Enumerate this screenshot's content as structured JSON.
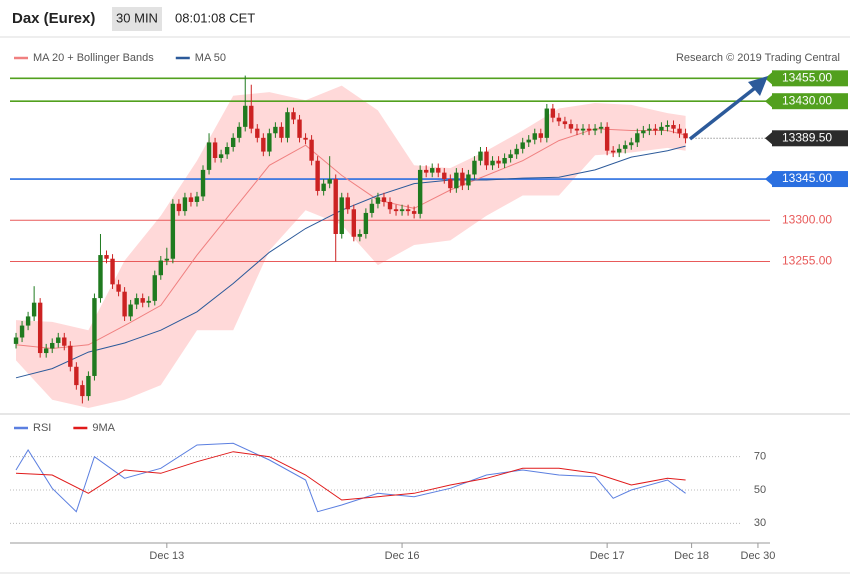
{
  "header": {
    "instrument": "Dax (Eurex)",
    "timeframe": "30 MIN",
    "time": "08:01:08 CET"
  },
  "chart_data": [
    {
      "type": "candlestick",
      "credit": "Research © 2019 Trading Central",
      "up_color": "#1f7a1f",
      "down_color": "#cc2222",
      "xlim": [
        -1,
        125
      ],
      "ylim": [
        13095,
        13475
      ],
      "open": [
        13165,
        13172,
        13185,
        13195,
        13210,
        13155,
        13160,
        13166,
        13172,
        13163,
        13140,
        13120,
        13108,
        13130,
        13215,
        13262,
        13258,
        13230,
        13222,
        13195,
        13208,
        13215,
        13210,
        13212,
        13240,
        13256,
        13258,
        13318,
        13310,
        13325,
        13320,
        13326,
        13355,
        13385,
        13368,
        13372,
        13380,
        13390,
        13402,
        13425,
        13400,
        13390,
        13375,
        13395,
        13402,
        13390,
        13418,
        13410,
        13390,
        13388,
        13365,
        13332,
        13340,
        13345,
        13285,
        13325,
        13312,
        13282,
        13285,
        13308,
        13318,
        13325,
        13320,
        13312,
        13310,
        13312,
        13310,
        13307,
        13355,
        13352,
        13357,
        13352,
        13345,
        13335,
        13352,
        13338,
        13350,
        13365,
        13375,
        13360,
        13365,
        13362,
        13368,
        13372,
        13378,
        13385,
        13388,
        13395,
        13390,
        13422,
        13412,
        13408,
        13405,
        13400,
        13398,
        13400,
        13398,
        13400,
        13402,
        13376,
        13374,
        13378,
        13382,
        13385,
        13395,
        13398,
        13400,
        13398,
        13402,
        13404,
        13400,
        13395
      ],
      "high": [
        13177,
        13190,
        13200,
        13228,
        13215,
        13165,
        13171,
        13177,
        13177,
        13168,
        13145,
        13125,
        13135,
        13220,
        13285,
        13267,
        13263,
        13235,
        13227,
        13213,
        13220,
        13220,
        13217,
        13245,
        13261,
        13270,
        13323,
        13323,
        13330,
        13330,
        13331,
        13360,
        13395,
        13390,
        13377,
        13385,
        13395,
        13407,
        13458,
        13448,
        13405,
        13395,
        13400,
        13407,
        13407,
        13423,
        13423,
        13415,
        13395,
        13393,
        13370,
        13345,
        13370,
        13350,
        13330,
        13330,
        13317,
        13290,
        13313,
        13323,
        13330,
        13330,
        13325,
        13317,
        13317,
        13317,
        13315,
        13360,
        13360,
        13362,
        13362,
        13357,
        13350,
        13357,
        13357,
        13355,
        13370,
        13380,
        13380,
        13370,
        13370,
        13373,
        13377,
        13383,
        13390,
        13393,
        13400,
        13400,
        13427,
        13427,
        13417,
        13413,
        13410,
        13405,
        13405,
        13405,
        13405,
        13407,
        13407,
        13381,
        13383,
        13387,
        13390,
        13400,
        13403,
        13405,
        13405,
        13407,
        13409,
        13409,
        13405,
        13400
      ],
      "low": [
        13160,
        13167,
        13180,
        13190,
        13150,
        13150,
        13155,
        13161,
        13158,
        13135,
        13115,
        13100,
        13103,
        13125,
        13210,
        13253,
        13225,
        13217,
        13190,
        13190,
        13203,
        13205,
        13205,
        13207,
        13235,
        13251,
        13253,
        13305,
        13305,
        13315,
        13315,
        13321,
        13350,
        13363,
        13363,
        13367,
        13375,
        13385,
        13397,
        13395,
        13385,
        13370,
        13370,
        13390,
        13385,
        13385,
        13405,
        13385,
        13383,
        13360,
        13327,
        13327,
        13335,
        13255,
        13280,
        13307,
        13277,
        13277,
        13280,
        13303,
        13313,
        13315,
        13307,
        13305,
        13305,
        13305,
        13302,
        13302,
        13347,
        13347,
        13347,
        13340,
        13330,
        13330,
        13333,
        13333,
        13345,
        13360,
        13355,
        13355,
        13357,
        13357,
        13363,
        13367,
        13373,
        13380,
        13383,
        13385,
        13385,
        13407,
        13403,
        13400,
        13395,
        13393,
        13393,
        13393,
        13393,
        13395,
        13371,
        13369,
        13369,
        13373,
        13377,
        13380,
        13390,
        13393,
        13393,
        13393,
        13397,
        13395,
        13390,
        13384
      ],
      "close": [
        13172,
        13185,
        13195,
        13210,
        13155,
        13160,
        13166,
        13172,
        13163,
        13140,
        13120,
        13108,
        13130,
        13215,
        13262,
        13258,
        13230,
        13222,
        13195,
        13208,
        13215,
        13210,
        13212,
        13240,
        13256,
        13258,
        13318,
        13310,
        13325,
        13320,
        13326,
        13355,
        13385,
        13368,
        13372,
        13380,
        13390,
        13402,
        13425,
        13400,
        13390,
        13375,
        13395,
        13402,
        13390,
        13418,
        13410,
        13390,
        13388,
        13365,
        13332,
        13340,
        13345,
        13285,
        13325,
        13312,
        13282,
        13285,
        13308,
        13318,
        13325,
        13320,
        13312,
        13310,
        13312,
        13310,
        13307,
        13355,
        13352,
        13357,
        13352,
        13345,
        13335,
        13352,
        13338,
        13350,
        13365,
        13375,
        13360,
        13365,
        13362,
        13368,
        13372,
        13378,
        13385,
        13388,
        13395,
        13390,
        13422,
        13412,
        13408,
        13405,
        13400,
        13398,
        13400,
        13398,
        13400,
        13402,
        13376,
        13374,
        13378,
        13382,
        13385,
        13395,
        13398,
        13400,
        13398,
        13402,
        13404,
        13400,
        13395,
        13389.5
      ],
      "series": [
        {
          "name": "MA 20 + Bollinger Bands",
          "color": "#f08080",
          "band_color": "#ffd9d9",
          "x": [
            0,
            6,
            12,
            18,
            24,
            30,
            36,
            42,
            48,
            54,
            60,
            66,
            72,
            78,
            84,
            90,
            96,
            102,
            108,
            111
          ],
          "values": [
            13164,
            13160,
            13164,
            13185,
            13207,
            13262,
            13311,
            13360,
            13382,
            13349,
            13322,
            13313,
            13333,
            13349,
            13365,
            13387,
            13400,
            13398,
            13398,
            13393
          ],
          "upper": [
            13191,
            13189,
            13180,
            13256,
            13305,
            13365,
            13436,
            13440,
            13431,
            13447,
            13420,
            13360,
            13357,
            13376,
            13398,
            13422,
            13428,
            13426,
            13417,
            13414
          ],
          "lower": [
            13147,
            13104,
            13095,
            13104,
            13120,
            13180,
            13180,
            13267,
            13311,
            13295,
            13251,
            13273,
            13278,
            13305,
            13327,
            13327,
            13371,
            13374,
            13379,
            13376
          ]
        },
        {
          "name": "MA 50",
          "color": "#2c5a9a",
          "x": [
            0,
            6,
            12,
            18,
            24,
            30,
            36,
            42,
            48,
            54,
            60,
            66,
            72,
            78,
            84,
            90,
            96,
            102,
            108,
            111
          ],
          "values": [
            13128,
            13138,
            13156,
            13166,
            13180,
            13200,
            13231,
            13265,
            13291,
            13311,
            13327,
            13340,
            13344,
            13344,
            13346,
            13347,
            13355,
            13369,
            13376,
            13381
          ]
        }
      ],
      "levels": [
        {
          "value": 13455,
          "label": "13455.00",
          "color": "#52a01e",
          "style": "box"
        },
        {
          "value": 13430,
          "label": "13430.00",
          "color": "#52a01e",
          "style": "box"
        },
        {
          "value": 13345,
          "label": "13345.00",
          "color": "#2a6fe0",
          "style": "box"
        },
        {
          "value": 13300,
          "label": "13300.00",
          "color": "#e85a5a",
          "style": "text"
        },
        {
          "value": 13255,
          "label": "13255.00",
          "color": "#e85a5a",
          "style": "text"
        }
      ],
      "last_price": {
        "value": 13389.5,
        "label": "13389.50",
        "color": "#2b2b2b"
      }
    },
    {
      "type": "line",
      "xlim": [
        -1,
        125
      ],
      "ylim": [
        20,
        80
      ],
      "yticks": [
        30,
        50,
        70
      ],
      "xticks": [
        {
          "value": 25,
          "label": "Dec 13"
        },
        {
          "value": 64,
          "label": "Dec 16"
        },
        {
          "value": 98,
          "label": "Dec 17"
        },
        {
          "value": 112,
          "label": "Dec 18"
        },
        {
          "value": 123,
          "label": "Dec 30"
        }
      ],
      "grid": true,
      "series": [
        {
          "name": "RSI",
          "color": "#5b7fe0",
          "x": [
            0,
            2,
            6,
            10,
            13,
            18,
            24,
            30,
            36,
            42,
            48,
            50,
            54,
            60,
            66,
            72,
            78,
            84,
            90,
            96,
            99,
            102,
            108,
            111
          ],
          "values": [
            62,
            74,
            51,
            37,
            70,
            57,
            63,
            77,
            78,
            68,
            56,
            37,
            41,
            48,
            46,
            51,
            59,
            62,
            59,
            58,
            45,
            50,
            56,
            48
          ]
        },
        {
          "name": "9MA",
          "color": "#e01a1a",
          "x": [
            0,
            6,
            12,
            18,
            24,
            30,
            36,
            42,
            48,
            54,
            60,
            66,
            72,
            78,
            84,
            90,
            96,
            102,
            108,
            111
          ],
          "values": [
            60,
            59,
            48,
            62,
            60,
            67,
            73,
            70,
            59,
            44,
            46,
            48,
            53,
            57,
            63,
            63,
            60,
            53,
            57,
            56
          ]
        }
      ]
    }
  ]
}
